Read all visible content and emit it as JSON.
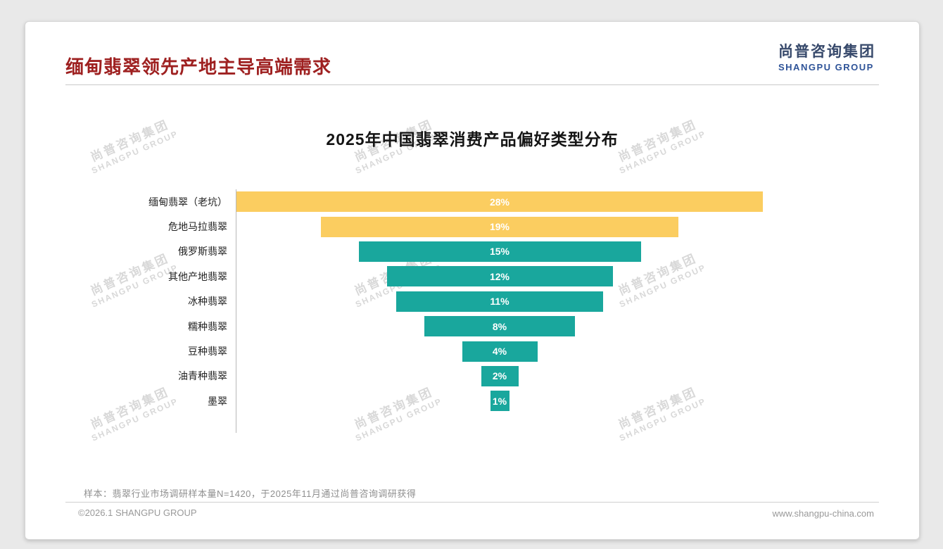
{
  "page": {
    "title": "缅甸翡翠领先产地主导高端需求",
    "title_color": "#9E2020",
    "background": "#e9e9e9"
  },
  "logo": {
    "cn": "尚普咨询集团",
    "en": "SHANGPU GROUP",
    "cn_color": "#37496B",
    "en_color": "#2E5398"
  },
  "watermark": {
    "cn": "尚普咨询集团",
    "en": "SHANGPU GROUP"
  },
  "chart_data": {
    "type": "bar",
    "subtype": "centered-funnel",
    "title": "2025年中国翡翠消费产品偏好类型分布",
    "categories": [
      "缅甸翡翠（老坑）",
      "危地马拉翡翠",
      "俄罗斯翡翠",
      "其他产地翡翠",
      "冰种翡翠",
      "糯种翡翠",
      "豆种翡翠",
      "油青种翡翠",
      "墨翠"
    ],
    "values": [
      28,
      19,
      15,
      12,
      11,
      8,
      4,
      2,
      1
    ],
    "value_labels": [
      "28%",
      "19%",
      "15%",
      "12%",
      "11%",
      "8%",
      "4%",
      "2%",
      "1%"
    ],
    "bar_colors": [
      "#FBCD60",
      "#FBCD60",
      "#19A79D",
      "#19A79D",
      "#19A79D",
      "#19A79D",
      "#19A79D",
      "#19A79D",
      "#19A79D"
    ],
    "value_label_color": "#ffffff",
    "unit": "%",
    "xlim": [
      0,
      28
    ],
    "grid": false,
    "legend": "none"
  },
  "footnote": "样本：翡翠行业市场调研样本量N=1420，于2025年11月通过尚普咨询调研获得",
  "footer": {
    "left": "©2026.1 SHANGPU GROUP",
    "right": "www.shangpu-china.com"
  }
}
